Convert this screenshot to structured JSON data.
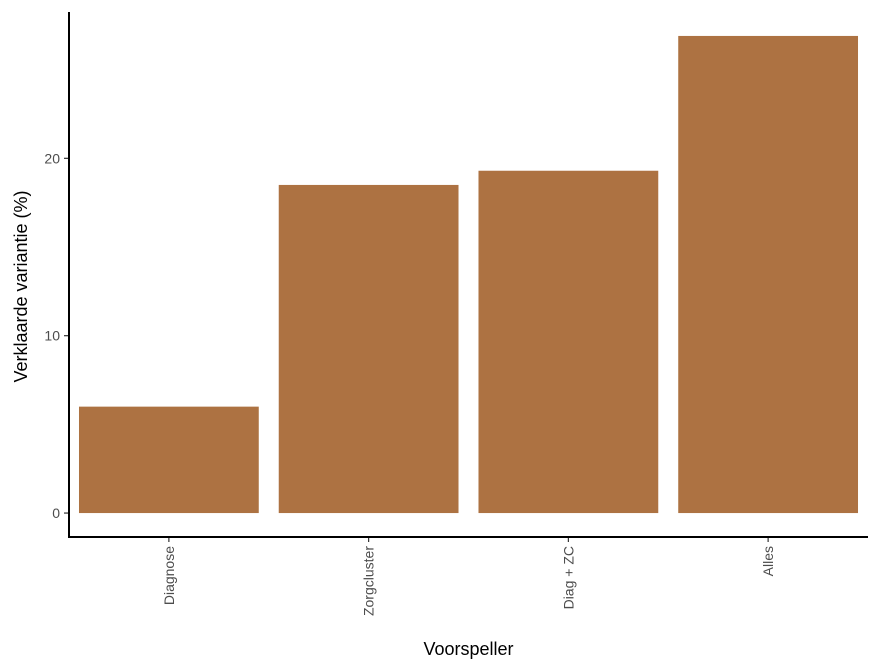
{
  "chart_data": {
    "type": "bar",
    "categories": [
      "Diagnose",
      "Zorgcluster",
      "Diag + ZC",
      "Alles"
    ],
    "values": [
      6.0,
      18.5,
      19.3,
      26.9
    ],
    "xlabel": "Voorspeller",
    "ylabel": "Verklaarde variantie (%)",
    "ylim": [
      -1.35,
      28.25
    ],
    "yticks": [
      0,
      10,
      20
    ],
    "grid": false,
    "legend": "none",
    "bar_color": "#AD7242",
    "axis_color": "#000000",
    "tick_label_color": "#4d4d4d"
  }
}
